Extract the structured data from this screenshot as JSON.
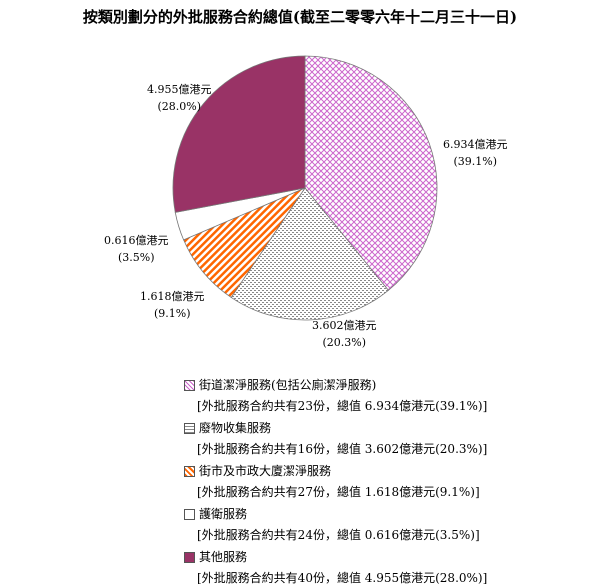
{
  "chart_data": {
    "type": "pie",
    "title": "按類別劃分的外批服務合約總值(截至二零零六年十二月三十一日)",
    "start_angle": "top, clockwise",
    "slices": [
      {
        "name": "街道潔淨服務(包括公廁潔淨服務)",
        "value": 6.934,
        "percent": 39.1,
        "label": "6.934億港元",
        "pct_label": "(39.1%)",
        "detail": "[外批服務合約共有23份，總值 6.934億港元(39.1%)]",
        "color": "#cc66cc",
        "pattern": "crosshatch"
      },
      {
        "name": "廢物收集服務",
        "value": 3.602,
        "percent": 20.3,
        "label": "3.602億港元",
        "pct_label": "(20.3%)",
        "detail": "[外批服務合約共有16份，總值 3.602億港元(20.3%)]",
        "color": "#888888",
        "pattern": "dotted"
      },
      {
        "name": "街市及市政大廈潔淨服務",
        "value": 1.618,
        "percent": 9.1,
        "label": "1.618億港元",
        "pct_label": "(9.1%)",
        "detail": "[外批服務合約共有27份，總值 1.618億港元(9.1%)]",
        "color": "#ff6600",
        "pattern": "diagonal-stripes"
      },
      {
        "name": "護衛服務",
        "value": 0.616,
        "percent": 3.5,
        "label": "0.616億港元",
        "pct_label": "(3.5%)",
        "detail": "[外批服務合約共有24份，總值 0.616億港元(3.5%)]",
        "color": "#ffffff",
        "pattern": "solid"
      },
      {
        "name": "其他服務",
        "value": 4.955,
        "percent": 28.0,
        "label": "4.955億港元",
        "pct_label": "(28.0%)",
        "detail": "[外批服務合約共有40份，總值 4.955億港元(28.0%)]",
        "color": "#993366",
        "pattern": "solid"
      }
    ],
    "legend_placement": "bottom"
  }
}
